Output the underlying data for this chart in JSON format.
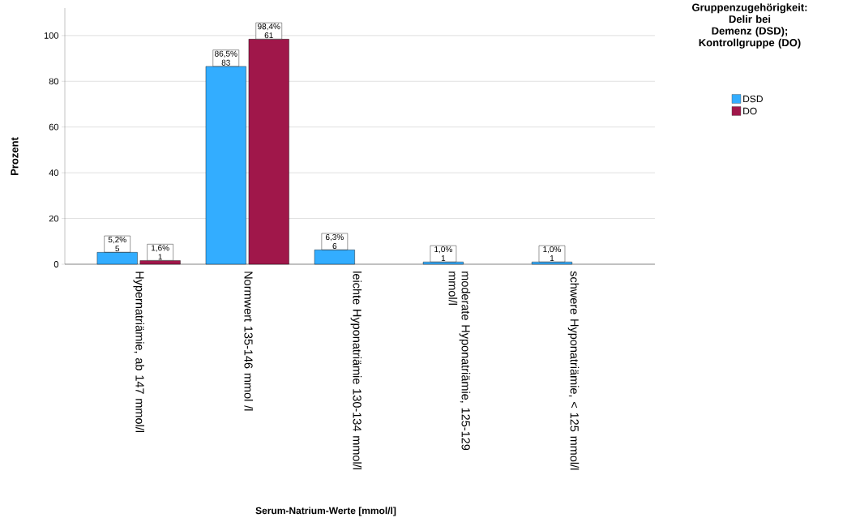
{
  "chart_data": {
    "type": "bar",
    "xlabel": "Serum-Natrium-Werte [mmol/l]",
    "ylabel": "Prozent",
    "legend_title": "Gruppenzugehörigkeit: Delir bei Demenz (DSD); Kontrollgruppe (DO)",
    "categories": [
      "Hypernatriämie, ab 147 mmol/l",
      "Normwert 135-146 mmol /l",
      "leichte Hyponatriämie 130-134 mmol/l",
      "moderate Hyponatriämie, 125-129 mmol/l",
      "schwere Hyponatriämie, < 125 mmol/l"
    ],
    "series": [
      {
        "name": "DSD",
        "color": "#33adff",
        "values": [
          5.2,
          86.5,
          6.3,
          1.0,
          1.0
        ],
        "value_labels": [
          "5,2% 5",
          "86,5% 83",
          "6,3% 6",
          "1,0% 1",
          "1,0% 1"
        ]
      },
      {
        "name": "DO",
        "color": "#a0174a",
        "values": [
          1.6,
          98.4,
          null,
          null,
          null
        ],
        "value_labels": [
          "1,6% 1",
          "98,4% 61",
          null,
          null,
          null
        ]
      }
    ],
    "ylim": [
      0,
      112
    ],
    "yticks": [
      0,
      20,
      40,
      60,
      80,
      100
    ],
    "grid": "y",
    "legend": "right"
  }
}
